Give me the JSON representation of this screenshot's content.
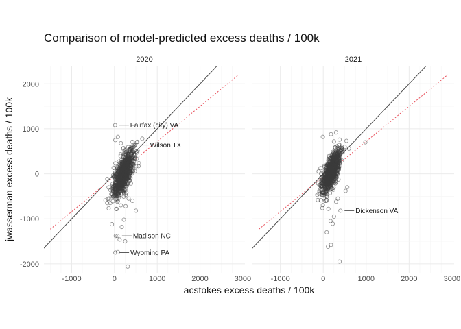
{
  "chart_data": {
    "type": "scatter",
    "title": "Comparison of model-predicted excess deaths / 100k",
    "xlabel": "acstokes excess deaths / 100k",
    "ylabel": "jwasserman excess deaths / 100k",
    "xlim": [
      -1650,
      3050
    ],
    "ylim": [
      -2200,
      2400
    ],
    "xticks": [
      -1000,
      0,
      1000,
      2000,
      3000
    ],
    "yticks": [
      -2000,
      -1000,
      0,
      1000,
      2000
    ],
    "grid": true,
    "reference_lines": {
      "identity": {
        "slope": 1,
        "intercept": 0,
        "style": "solid",
        "color": "#4a4a4a"
      },
      "fit_line_color": "#e8505b"
    },
    "panels": [
      {
        "label": "2020",
        "fit_line": {
          "x": [
            -1500,
            2900
          ],
          "y": [
            -1230,
            2200
          ],
          "style": "dotted"
        },
        "point_cloud": {
          "center": [
            210,
            0
          ],
          "sd": [
            120,
            260
          ],
          "correlation": 0.72,
          "n": 900
        },
        "points": [
          {
            "x": 15,
            "y": 1080
          },
          {
            "x": 480,
            "y": 640
          },
          {
            "x": 80,
            "y": 820
          },
          {
            "x": 20,
            "y": 750
          },
          {
            "x": 150,
            "y": 680
          },
          {
            "x": 650,
            "y": 780
          },
          {
            "x": 520,
            "y": 700
          },
          {
            "x": 380,
            "y": 560
          },
          {
            "x": -20,
            "y": -500
          },
          {
            "x": -100,
            "y": -650
          },
          {
            "x": 40,
            "y": -780
          },
          {
            "x": 150,
            "y": -700
          },
          {
            "x": 260,
            "y": -720
          },
          {
            "x": -60,
            "y": -1120
          },
          {
            "x": 170,
            "y": -1180
          },
          {
            "x": 220,
            "y": -1020
          },
          {
            "x": 120,
            "y": -1460
          },
          {
            "x": 250,
            "y": -1500
          },
          {
            "x": 30,
            "y": -1380
          },
          {
            "x": 70,
            "y": -1380
          },
          {
            "x": 20,
            "y": -1750
          },
          {
            "x": 80,
            "y": -1740
          },
          {
            "x": 310,
            "y": -2060
          },
          {
            "x": 330,
            "y": -550
          },
          {
            "x": 420,
            "y": -600
          },
          {
            "x": 500,
            "y": -820
          },
          {
            "x": 280,
            "y": -420
          },
          {
            "x": -150,
            "y": -560
          },
          {
            "x": 360,
            "y": 520
          },
          {
            "x": 450,
            "y": 600
          },
          {
            "x": 200,
            "y": 560
          },
          {
            "x": 280,
            "y": 500
          }
        ],
        "annotations": [
          {
            "label": "Fairfax (city) VA",
            "x": 15,
            "y": 1080
          },
          {
            "label": "Wilson TX",
            "x": 480,
            "y": 640
          },
          {
            "label": "Madison NC",
            "x": 80,
            "y": -1380
          },
          {
            "label": "Wyoming PA",
            "x": 20,
            "y": -1750
          }
        ]
      },
      {
        "label": "2021",
        "fit_line": {
          "x": [
            -1500,
            2900
          ],
          "y": [
            -1230,
            2200
          ],
          "style": "dotted"
        },
        "point_cloud": {
          "center": [
            180,
            30
          ],
          "sd": [
            110,
            240
          ],
          "correlation": 0.72,
          "n": 900
        },
        "points": [
          {
            "x": -10,
            "y": 820
          },
          {
            "x": 180,
            "y": 880
          },
          {
            "x": 300,
            "y": 920
          },
          {
            "x": 250,
            "y": 720
          },
          {
            "x": 380,
            "y": 760
          },
          {
            "x": 500,
            "y": 600
          },
          {
            "x": 600,
            "y": 560
          },
          {
            "x": 980,
            "y": 700
          },
          {
            "x": 420,
            "y": 540
          },
          {
            "x": 120,
            "y": -780
          },
          {
            "x": 170,
            "y": -1050
          },
          {
            "x": 220,
            "y": -1110
          },
          {
            "x": 80,
            "y": -1300
          },
          {
            "x": 110,
            "y": -1620
          },
          {
            "x": 180,
            "y": -1580
          },
          {
            "x": 380,
            "y": -1950
          },
          {
            "x": 400,
            "y": -820
          },
          {
            "x": 300,
            "y": -620
          },
          {
            "x": 520,
            "y": -380
          },
          {
            "x": 560,
            "y": -300
          },
          {
            "x": 250,
            "y": -950
          },
          {
            "x": 340,
            "y": -550
          },
          {
            "x": 50,
            "y": -600
          },
          {
            "x": -40,
            "y": -450
          }
        ],
        "annotations": [
          {
            "label": "Dickenson VA",
            "x": 400,
            "y": -820
          }
        ]
      }
    ]
  }
}
